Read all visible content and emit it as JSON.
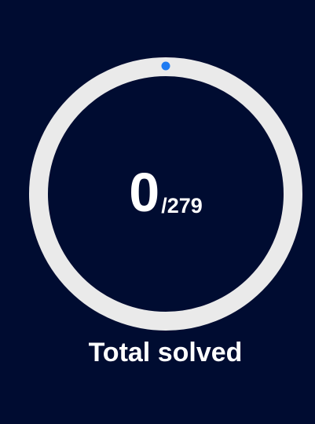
{
  "progress": {
    "solved": "0",
    "total_label": "/279",
    "total": 279,
    "fraction_solved": 0
  },
  "caption": "Total solved",
  "colors": {
    "background": "#000c31",
    "track": "#eaeaea",
    "progress_marker": "#1e7bf2",
    "text": "#ffffff"
  }
}
